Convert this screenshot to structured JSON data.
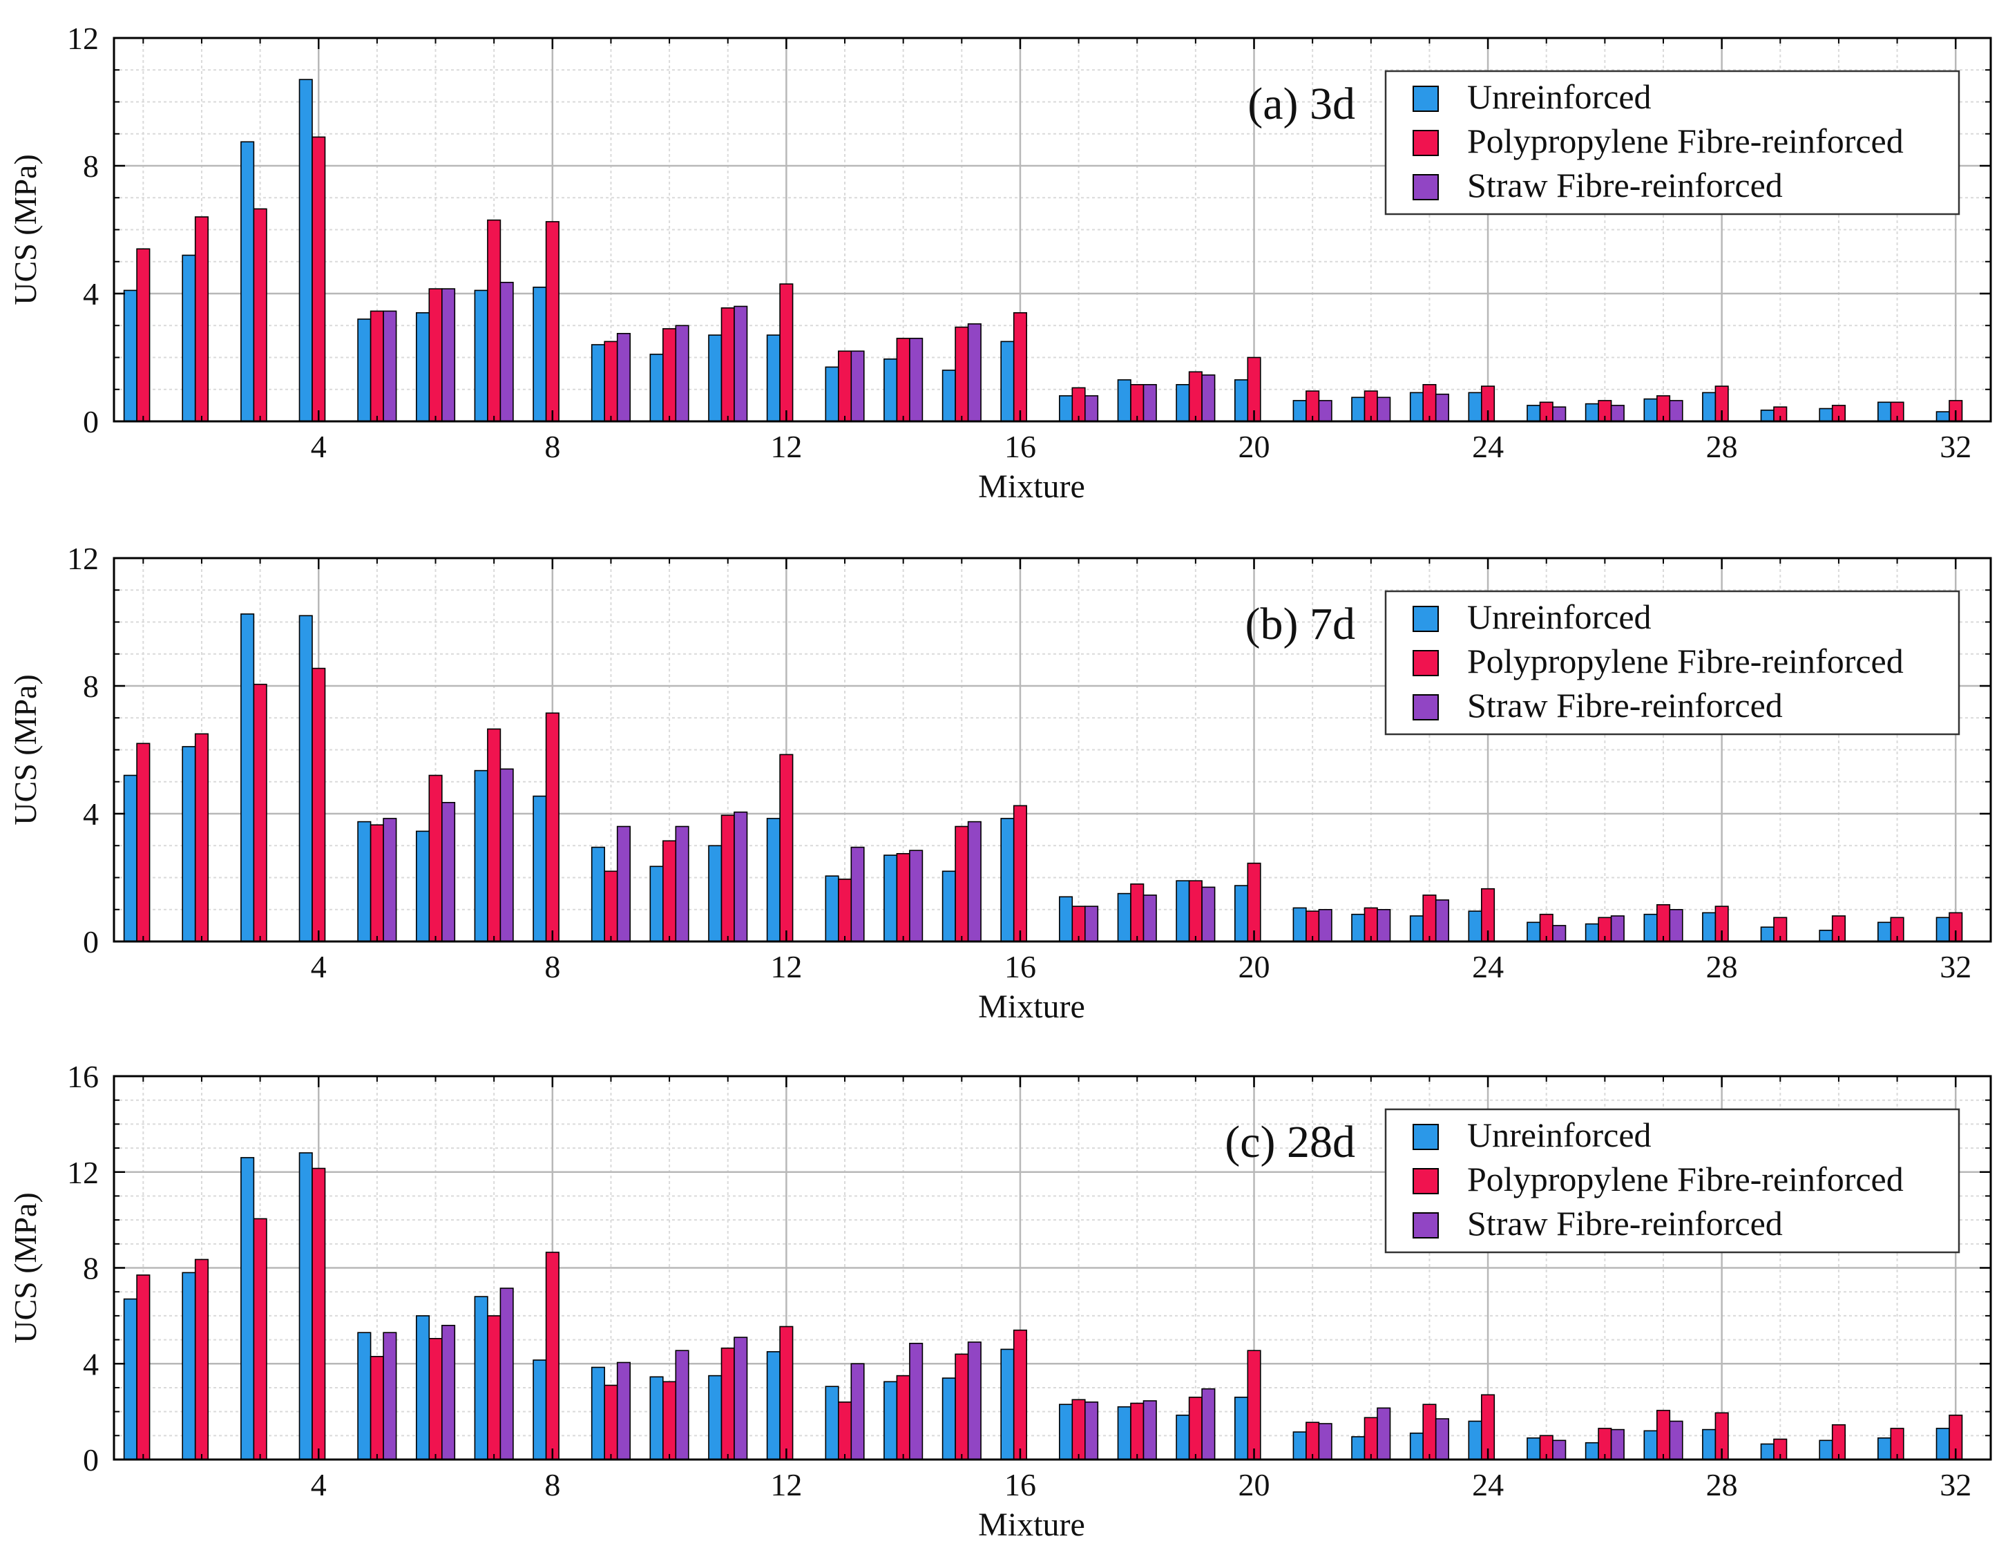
{
  "colors": {
    "Unreinforced": "#2b98e8",
    "Polypropylene Fibre-reinforced": "#f0134f",
    "Straw Fibre-reinforced": "#9145c4",
    "grid_major": "#b8b8b8",
    "grid_minor": "#dadada"
  },
  "chart_data": [
    {
      "type": "bar",
      "panel_label": "(a) 3d",
      "xlabel": "Mixture",
      "ylabel": "UCS (MPa)",
      "ylim": [
        0,
        12
      ],
      "yticks": [
        0,
        4,
        8,
        12
      ],
      "xticks": [
        4,
        8,
        12,
        16,
        20,
        24,
        28,
        32
      ],
      "grid": true,
      "legend_position": "top-right",
      "categories": [
        1,
        2,
        3,
        4,
        5,
        6,
        7,
        8,
        9,
        10,
        11,
        12,
        13,
        14,
        15,
        16,
        17,
        18,
        19,
        20,
        21,
        22,
        23,
        24,
        25,
        26,
        27,
        28,
        29,
        30,
        31,
        32
      ],
      "series": [
        {
          "name": "Unreinforced",
          "values": [
            4.1,
            5.2,
            8.75,
            10.7,
            3.2,
            3.4,
            4.1,
            4.2,
            2.4,
            2.1,
            2.7,
            2.7,
            1.7,
            1.95,
            1.6,
            2.5,
            0.8,
            1.3,
            1.15,
            1.3,
            0.65,
            0.75,
            0.9,
            0.9,
            0.5,
            0.55,
            0.7,
            0.9,
            0.35,
            0.4,
            0.6,
            0.3
          ]
        },
        {
          "name": "Polypropylene Fibre-reinforced",
          "values": [
            5.4,
            6.4,
            6.65,
            8.9,
            3.45,
            4.15,
            6.3,
            6.25,
            2.5,
            2.9,
            3.55,
            4.3,
            2.2,
            2.6,
            2.95,
            3.4,
            1.05,
            1.15,
            1.55,
            2.0,
            0.95,
            0.95,
            1.15,
            1.1,
            0.6,
            0.65,
            0.8,
            1.1,
            0.45,
            0.5,
            0.6,
            0.65
          ]
        },
        {
          "name": "Straw Fibre-reinforced",
          "values": [
            null,
            null,
            null,
            null,
            3.45,
            4.15,
            4.35,
            null,
            2.75,
            3.0,
            3.6,
            null,
            2.2,
            2.6,
            3.05,
            null,
            0.8,
            1.15,
            1.45,
            null,
            0.65,
            0.75,
            0.85,
            null,
            0.45,
            0.5,
            0.65,
            null,
            null,
            null,
            null,
            null
          ]
        }
      ]
    },
    {
      "type": "bar",
      "panel_label": "(b) 7d",
      "xlabel": "Mixture",
      "ylabel": "UCS (MPa)",
      "ylim": [
        0,
        12
      ],
      "yticks": [
        0,
        4,
        8,
        12
      ],
      "xticks": [
        4,
        8,
        12,
        16,
        20,
        24,
        28,
        32
      ],
      "grid": true,
      "legend_position": "top-right",
      "categories": [
        1,
        2,
        3,
        4,
        5,
        6,
        7,
        8,
        9,
        10,
        11,
        12,
        13,
        14,
        15,
        16,
        17,
        18,
        19,
        20,
        21,
        22,
        23,
        24,
        25,
        26,
        27,
        28,
        29,
        30,
        31,
        32
      ],
      "series": [
        {
          "name": "Unreinforced",
          "values": [
            5.2,
            6.1,
            10.25,
            10.2,
            3.75,
            3.45,
            5.35,
            4.55,
            2.95,
            2.35,
            3.0,
            3.85,
            2.05,
            2.7,
            2.2,
            3.85,
            1.4,
            1.5,
            1.9,
            1.75,
            1.05,
            0.85,
            0.8,
            0.95,
            0.6,
            0.55,
            0.85,
            0.9,
            0.45,
            0.35,
            0.6,
            0.75
          ]
        },
        {
          "name": "Polypropylene Fibre-reinforced",
          "values": [
            6.2,
            6.5,
            8.05,
            8.55,
            3.65,
            5.2,
            6.65,
            7.15,
            2.2,
            3.15,
            3.95,
            5.85,
            1.95,
            2.75,
            3.6,
            4.25,
            1.1,
            1.8,
            1.9,
            2.45,
            0.95,
            1.05,
            1.45,
            1.65,
            0.85,
            0.75,
            1.15,
            1.1,
            0.75,
            0.8,
            0.75,
            0.9
          ]
        },
        {
          "name": "Straw Fibre-reinforced",
          "values": [
            null,
            null,
            null,
            null,
            3.85,
            4.35,
            5.4,
            null,
            3.6,
            3.6,
            4.05,
            null,
            2.95,
            2.85,
            3.75,
            null,
            1.1,
            1.45,
            1.7,
            null,
            1.0,
            1.0,
            1.3,
            null,
            0.5,
            0.8,
            1.0,
            null,
            null,
            null,
            null,
            null
          ]
        }
      ]
    },
    {
      "type": "bar",
      "panel_label": "(c) 28d",
      "xlabel": "Mixture",
      "ylabel": "UCS (MPa)",
      "ylim": [
        0,
        16
      ],
      "yticks": [
        0,
        4,
        8,
        12,
        16
      ],
      "xticks": [
        4,
        8,
        12,
        16,
        20,
        24,
        28,
        32
      ],
      "grid": true,
      "legend_position": "top-right",
      "categories": [
        1,
        2,
        3,
        4,
        5,
        6,
        7,
        8,
        9,
        10,
        11,
        12,
        13,
        14,
        15,
        16,
        17,
        18,
        19,
        20,
        21,
        22,
        23,
        24,
        25,
        26,
        27,
        28,
        29,
        30,
        31,
        32
      ],
      "series": [
        {
          "name": "Unreinforced",
          "values": [
            6.7,
            7.8,
            12.6,
            12.8,
            5.3,
            6.0,
            6.8,
            4.15,
            3.85,
            3.45,
            3.5,
            4.5,
            3.05,
            3.25,
            3.4,
            4.6,
            2.3,
            2.2,
            1.85,
            2.6,
            1.15,
            0.95,
            1.1,
            1.6,
            0.9,
            0.7,
            1.2,
            1.25,
            0.65,
            0.8,
            0.9,
            1.3
          ]
        },
        {
          "name": "Polypropylene Fibre-reinforced",
          "values": [
            7.7,
            8.35,
            10.05,
            12.15,
            4.3,
            5.05,
            6.0,
            8.65,
            3.1,
            3.25,
            4.65,
            5.55,
            2.4,
            3.5,
            4.4,
            5.4,
            2.5,
            2.35,
            2.6,
            4.55,
            1.55,
            1.75,
            2.3,
            2.7,
            1.0,
            1.3,
            2.05,
            1.95,
            0.85,
            1.45,
            1.3,
            1.85
          ]
        },
        {
          "name": "Straw Fibre-reinforced",
          "values": [
            null,
            null,
            null,
            null,
            5.3,
            5.6,
            7.15,
            null,
            4.05,
            4.55,
            5.1,
            null,
            4.0,
            4.85,
            4.9,
            null,
            2.4,
            2.45,
            2.95,
            null,
            1.5,
            2.15,
            1.7,
            null,
            0.8,
            1.25,
            1.6,
            null,
            null,
            null,
            null,
            null
          ]
        }
      ]
    }
  ]
}
